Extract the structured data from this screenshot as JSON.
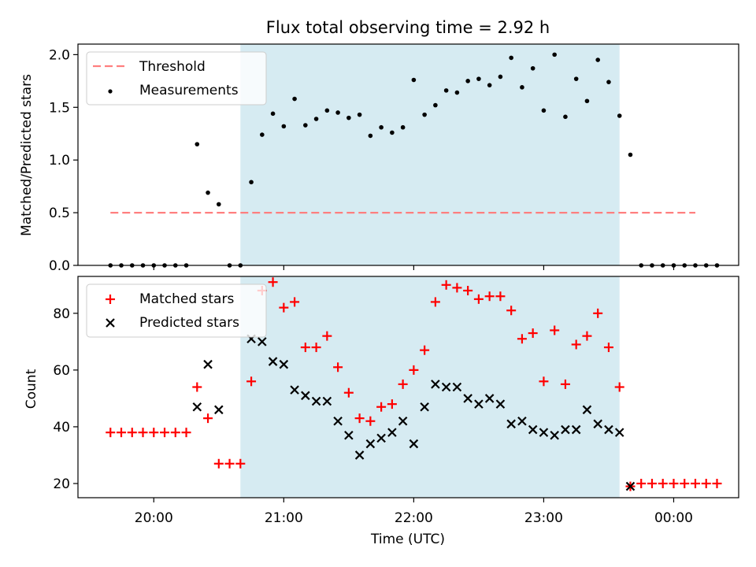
{
  "title": "Flux total observing time = 2.92 h",
  "shade_color": "#add8e6",
  "chart_data": [
    {
      "type": "scatter",
      "panel": "top",
      "title": "Flux total observing time = 2.92 h",
      "ylabel": "Matched/Predicted stars",
      "xlabel": "",
      "xlim": [
        "19:25",
        "00:30"
      ],
      "ylim": [
        0,
        2.1
      ],
      "yticks": [
        "0.0",
        "0.5",
        "1.0",
        "1.5",
        "2.0"
      ],
      "xticks": [
        "20:00",
        "21:00",
        "22:00",
        "23:00",
        "00:00"
      ],
      "legend_position": "upper-left",
      "shaded_interval": [
        "20:40",
        "23:35"
      ],
      "threshold": {
        "name": "Threshold",
        "y": 0.5,
        "x_start": "19:40",
        "x_end": "00:10",
        "color": "#ff7f7f",
        "style": "dashed"
      },
      "series": [
        {
          "name": "Measurements",
          "color": "#000000",
          "marker": "dot",
          "points": [
            [
              "19:40",
              0.0
            ],
            [
              "19:45",
              0.0
            ],
            [
              "19:50",
              0.0
            ],
            [
              "19:55",
              0.0
            ],
            [
              "20:00",
              0.0
            ],
            [
              "20:05",
              0.0
            ],
            [
              "20:10",
              0.0
            ],
            [
              "20:15",
              0.0
            ],
            [
              "20:20",
              1.15
            ],
            [
              "20:25",
              0.69
            ],
            [
              "20:30",
              0.58
            ],
            [
              "20:35",
              0.0
            ],
            [
              "20:40",
              0.0
            ],
            [
              "20:45",
              0.79
            ],
            [
              "20:50",
              1.24
            ],
            [
              "20:55",
              1.44
            ],
            [
              "21:00",
              1.32
            ],
            [
              "21:05",
              1.58
            ],
            [
              "21:10",
              1.33
            ],
            [
              "21:15",
              1.39
            ],
            [
              "21:20",
              1.47
            ],
            [
              "21:25",
              1.45
            ],
            [
              "21:30",
              1.4
            ],
            [
              "21:35",
              1.43
            ],
            [
              "21:40",
              1.23
            ],
            [
              "21:45",
              1.31
            ],
            [
              "21:50",
              1.26
            ],
            [
              "21:55",
              1.31
            ],
            [
              "22:00",
              1.76
            ],
            [
              "22:05",
              1.43
            ],
            [
              "22:10",
              1.52
            ],
            [
              "22:15",
              1.66
            ],
            [
              "22:20",
              1.64
            ],
            [
              "22:25",
              1.75
            ],
            [
              "22:30",
              1.77
            ],
            [
              "22:35",
              1.71
            ],
            [
              "22:40",
              1.79
            ],
            [
              "22:45",
              1.97
            ],
            [
              "22:50",
              1.69
            ],
            [
              "22:55",
              1.87
            ],
            [
              "23:00",
              1.47
            ],
            [
              "23:05",
              2.0
            ],
            [
              "23:10",
              1.41
            ],
            [
              "23:15",
              1.77
            ],
            [
              "23:20",
              1.56
            ],
            [
              "23:25",
              1.95
            ],
            [
              "23:30",
              1.74
            ],
            [
              "23:35",
              1.42
            ],
            [
              "23:40",
              1.05
            ],
            [
              "23:45",
              0.0
            ],
            [
              "23:50",
              0.0
            ],
            [
              "23:55",
              0.0
            ],
            [
              "00:00",
              0.0
            ],
            [
              "00:05",
              0.0
            ],
            [
              "00:10",
              0.0
            ],
            [
              "00:15",
              0.0
            ],
            [
              "00:20",
              0.0
            ]
          ]
        }
      ]
    },
    {
      "type": "scatter",
      "panel": "bottom",
      "title": "",
      "ylabel": "Count",
      "xlabel": "Time (UTC)",
      "xlim": [
        "19:25",
        "00:30"
      ],
      "ylim": [
        15,
        93
      ],
      "yticks": [
        "20",
        "40",
        "60",
        "80"
      ],
      "xticks": [
        "20:00",
        "21:00",
        "22:00",
        "23:00",
        "00:00"
      ],
      "legend_position": "upper-left",
      "shaded_interval": [
        "20:40",
        "23:35"
      ],
      "series": [
        {
          "name": "Matched stars",
          "color": "#ff0000",
          "marker": "plus",
          "points": [
            [
              "19:40",
              38
            ],
            [
              "19:45",
              38
            ],
            [
              "19:50",
              38
            ],
            [
              "19:55",
              38
            ],
            [
              "20:00",
              38
            ],
            [
              "20:05",
              38
            ],
            [
              "20:10",
              38
            ],
            [
              "20:15",
              38
            ],
            [
              "20:20",
              54
            ],
            [
              "20:25",
              43
            ],
            [
              "20:30",
              27
            ],
            [
              "20:35",
              27
            ],
            [
              "20:40",
              27
            ],
            [
              "20:45",
              56
            ],
            [
              "20:50",
              88
            ],
            [
              "20:55",
              91
            ],
            [
              "21:00",
              82
            ],
            [
              "21:05",
              84
            ],
            [
              "21:10",
              68
            ],
            [
              "21:15",
              68
            ],
            [
              "21:20",
              72
            ],
            [
              "21:25",
              61
            ],
            [
              "21:30",
              52
            ],
            [
              "21:35",
              43
            ],
            [
              "21:40",
              42
            ],
            [
              "21:45",
              47
            ],
            [
              "21:50",
              48
            ],
            [
              "21:55",
              55
            ],
            [
              "22:00",
              60
            ],
            [
              "22:05",
              67
            ],
            [
              "22:10",
              84
            ],
            [
              "22:15",
              90
            ],
            [
              "22:20",
              89
            ],
            [
              "22:25",
              88
            ],
            [
              "22:30",
              85
            ],
            [
              "22:35",
              86
            ],
            [
              "22:40",
              86
            ],
            [
              "22:45",
              81
            ],
            [
              "22:50",
              71
            ],
            [
              "22:55",
              73
            ],
            [
              "23:00",
              56
            ],
            [
              "23:05",
              74
            ],
            [
              "23:10",
              55
            ],
            [
              "23:15",
              69
            ],
            [
              "23:20",
              72
            ],
            [
              "23:25",
              80
            ],
            [
              "23:30",
              68
            ],
            [
              "23:35",
              54
            ],
            [
              "23:40",
              19
            ],
            [
              "23:45",
              20
            ],
            [
              "23:50",
              20
            ],
            [
              "23:55",
              20
            ],
            [
              "00:00",
              20
            ],
            [
              "00:05",
              20
            ],
            [
              "00:10",
              20
            ],
            [
              "00:15",
              20
            ],
            [
              "00:20",
              20
            ]
          ]
        },
        {
          "name": "Predicted stars",
          "color": "#000000",
          "marker": "x",
          "points": [
            [
              "20:20",
              47
            ],
            [
              "20:25",
              62
            ],
            [
              "20:30",
              46
            ],
            [
              "20:45",
              71
            ],
            [
              "20:50",
              70
            ],
            [
              "20:55",
              63
            ],
            [
              "21:00",
              62
            ],
            [
              "21:05",
              53
            ],
            [
              "21:10",
              51
            ],
            [
              "21:15",
              49
            ],
            [
              "21:20",
              49
            ],
            [
              "21:25",
              42
            ],
            [
              "21:30",
              37
            ],
            [
              "21:35",
              30
            ],
            [
              "21:40",
              34
            ],
            [
              "21:45",
              36
            ],
            [
              "21:50",
              38
            ],
            [
              "21:55",
              42
            ],
            [
              "22:00",
              34
            ],
            [
              "22:05",
              47
            ],
            [
              "22:10",
              55
            ],
            [
              "22:15",
              54
            ],
            [
              "22:20",
              54
            ],
            [
              "22:25",
              50
            ],
            [
              "22:30",
              48
            ],
            [
              "22:35",
              50
            ],
            [
              "22:40",
              48
            ],
            [
              "22:45",
              41
            ],
            [
              "22:50",
              42
            ],
            [
              "22:55",
              39
            ],
            [
              "23:00",
              38
            ],
            [
              "23:05",
              37
            ],
            [
              "23:10",
              39
            ],
            [
              "23:15",
              39
            ],
            [
              "23:20",
              46
            ],
            [
              "23:25",
              41
            ],
            [
              "23:30",
              39
            ],
            [
              "23:35",
              38
            ],
            [
              "23:40",
              19
            ]
          ]
        }
      ]
    }
  ]
}
